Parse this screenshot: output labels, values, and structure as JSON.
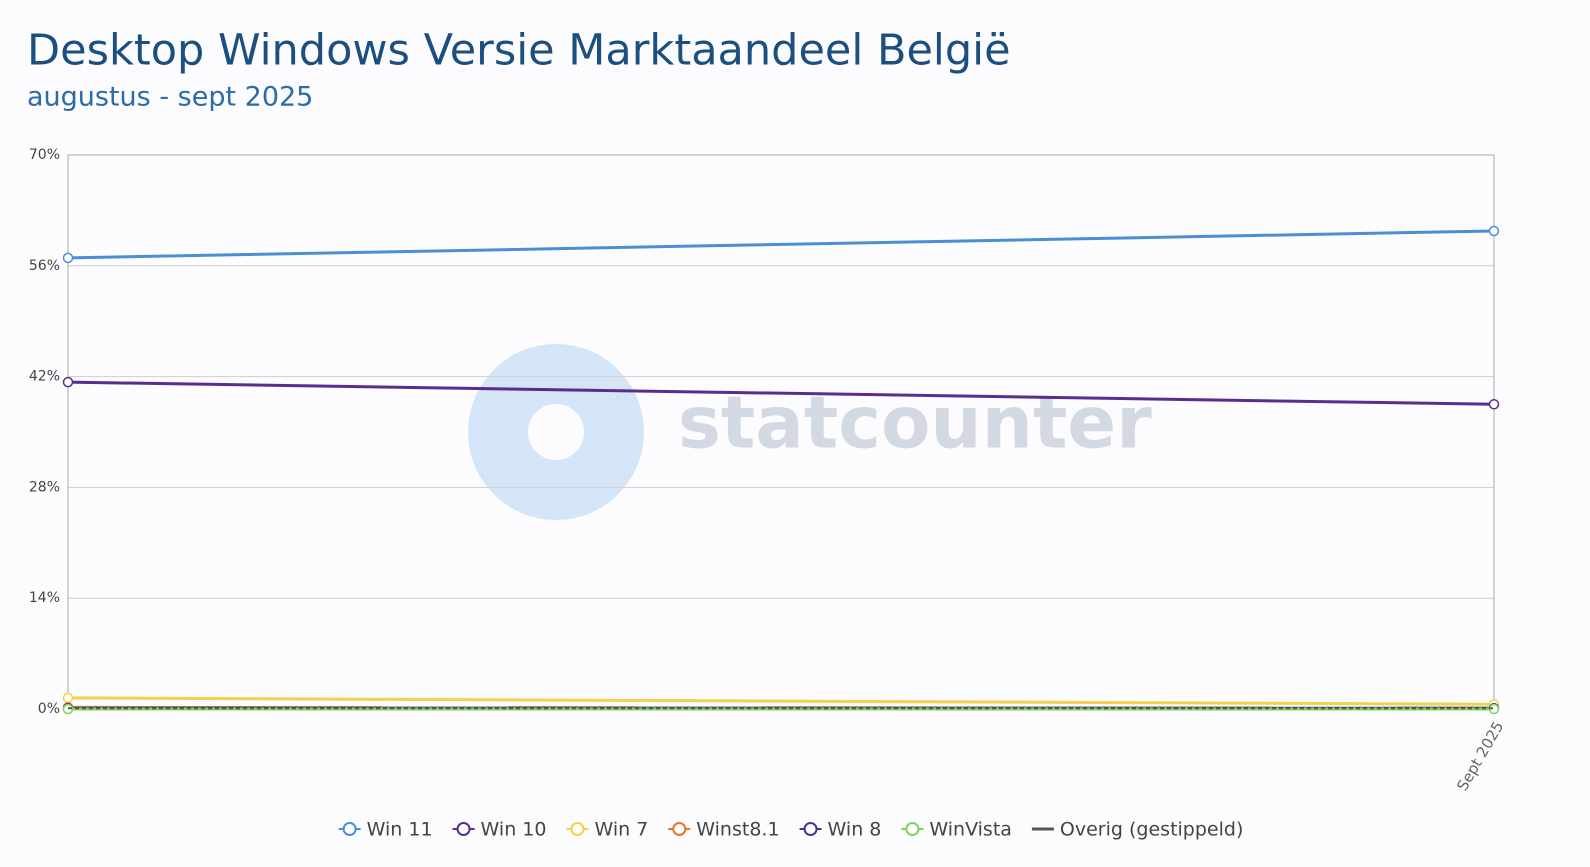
{
  "chart_data": {
    "type": "line",
    "title": "Desktop Windows Versie Marktaandeel België",
    "subtitle": "augustus - sept 2025",
    "watermark": "statcounter",
    "categories": [
      null,
      "Sept 2025"
    ],
    "series": [
      {
        "name": "Win 11",
        "color": "#4a8fd6",
        "values": [
          57.0,
          60.4
        ]
      },
      {
        "name": "Win 10",
        "color": "#5b2c8f",
        "values": [
          41.3,
          38.5
        ]
      },
      {
        "name": "Win 7",
        "color": "#f2d24b",
        "values": [
          1.4,
          0.6
        ]
      },
      {
        "name": "Winst8.1",
        "color": "#e8742a",
        "values": [
          0.2,
          0.1
        ]
      },
      {
        "name": "Win 8",
        "color": "#3d3a8c",
        "values": [
          0.1,
          0.1
        ]
      },
      {
        "name": "WinVista",
        "color": "#7ed35f",
        "values": [
          0.0,
          0.0
        ]
      },
      {
        "name": "Overig (gestippeld)",
        "color": "#555555",
        "dashed": true,
        "values": [
          0.1,
          0.1
        ]
      }
    ],
    "ylim": [
      0,
      70
    ],
    "yticks": [
      {
        "value": 0,
        "label": "0%"
      },
      {
        "value": 14,
        "label": "14%"
      },
      {
        "value": 28,
        "label": "28%"
      },
      {
        "value": 42,
        "label": "42%"
      },
      {
        "value": 56,
        "label": "56%"
      },
      {
        "value": 70,
        "label": "70%"
      }
    ],
    "grid": true
  }
}
